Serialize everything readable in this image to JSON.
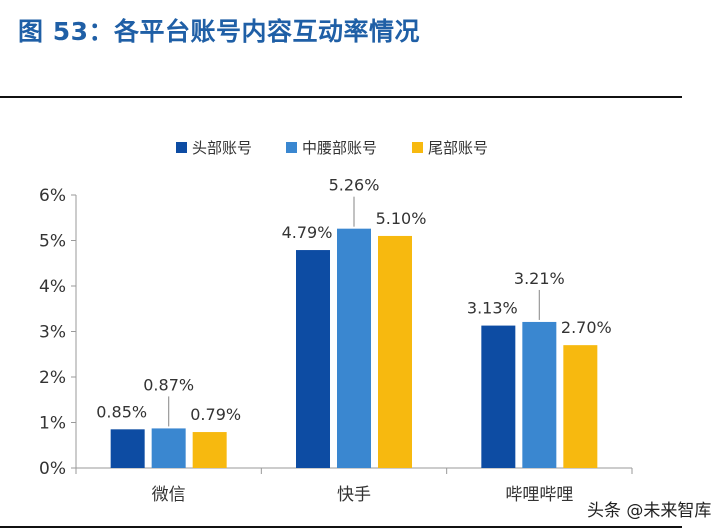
{
  "figure": {
    "title": "图 53：各平台账号内容互动率情况"
  },
  "watermark": "头条 @未来智库",
  "colors": {
    "title": "#1f5fa6",
    "head": "#0d4ca3",
    "waist": "#3a87d0",
    "tail": "#f7b90f",
    "axis": "#9a9a9a",
    "text": "#333333"
  },
  "chart_data": {
    "type": "bar",
    "title": "",
    "xlabel": "",
    "ylabel": "",
    "categories": [
      "微信",
      "快手",
      "哔哩哔哩"
    ],
    "series": [
      {
        "name": "头部账号",
        "values": [
          0.85,
          4.79,
          3.13
        ],
        "labels": [
          "0.85%",
          "4.79%",
          "3.13%"
        ]
      },
      {
        "name": "中腰部账号",
        "values": [
          0.87,
          5.26,
          3.21
        ],
        "labels": [
          "0.87%",
          "5.26%",
          "3.21%"
        ]
      },
      {
        "name": "尾部账号",
        "values": [
          0.79,
          5.1,
          2.7
        ],
        "labels": [
          "0.79%",
          "5.10%",
          "2.70%"
        ]
      }
    ],
    "ylim": [
      0,
      6
    ],
    "yticks": [
      0,
      1,
      2,
      3,
      4,
      5,
      6
    ],
    "ytick_labels": [
      "0%",
      "1%",
      "2%",
      "3%",
      "4%",
      "5%",
      "6%"
    ],
    "legend": "top-center",
    "grid": false
  }
}
